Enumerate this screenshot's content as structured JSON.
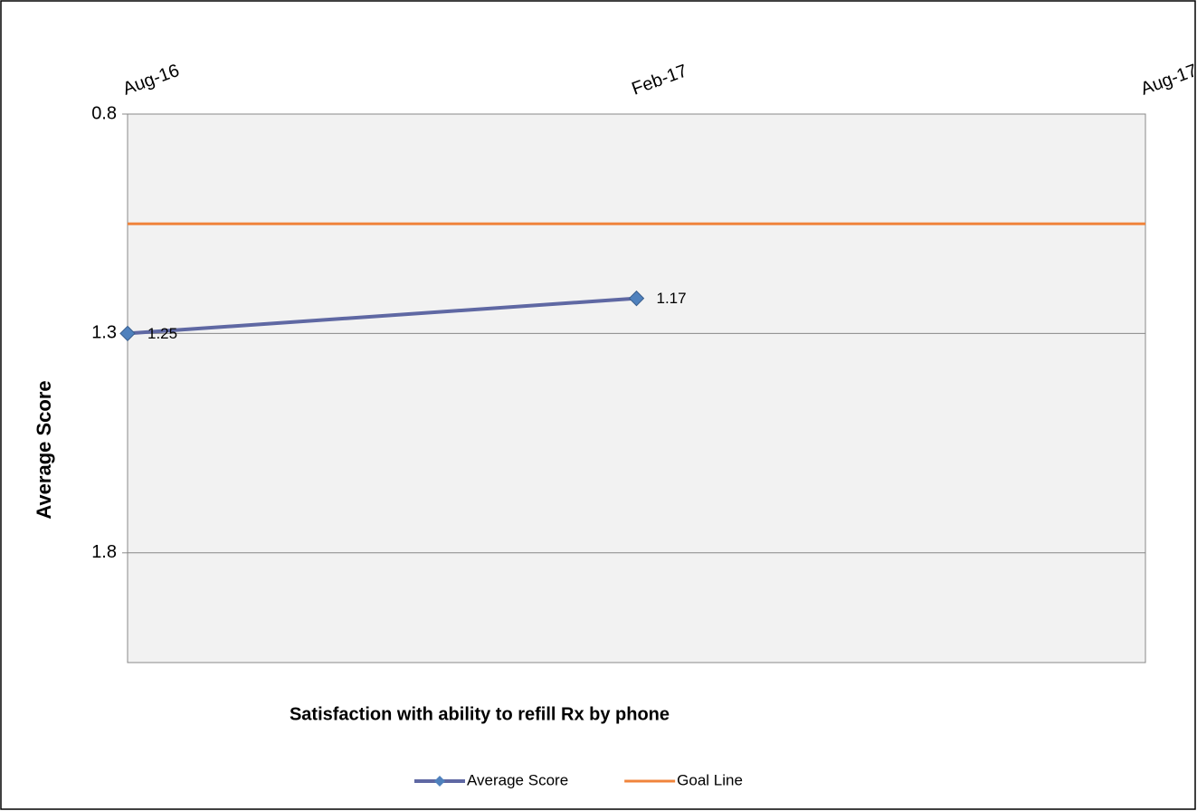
{
  "chart_data": {
    "type": "line",
    "title": "Satisfaction with ability to refill Rx by phone",
    "ylabel": "Average Score",
    "x": [
      "Aug-16",
      "Feb-17",
      "Aug-17"
    ],
    "series": [
      {
        "name": "Average Score",
        "color": "#5f68a3",
        "marker_color": "#4f81bd",
        "values": [
          1.25,
          1.17,
          null
        ]
      },
      {
        "name": "Goal Line",
        "color": "#f0843c",
        "values": [
          1.0,
          1.0,
          1.0
        ]
      }
    ],
    "ylim": [
      0.75,
      2.0
    ],
    "y_reversed": true,
    "yticks": [
      {
        "value": 0.75,
        "label": "0.8"
      },
      {
        "value": 1.25,
        "label": "1.3"
      },
      {
        "value": 1.75,
        "label": "1.8"
      }
    ],
    "grid": true,
    "legend": "bottom"
  }
}
